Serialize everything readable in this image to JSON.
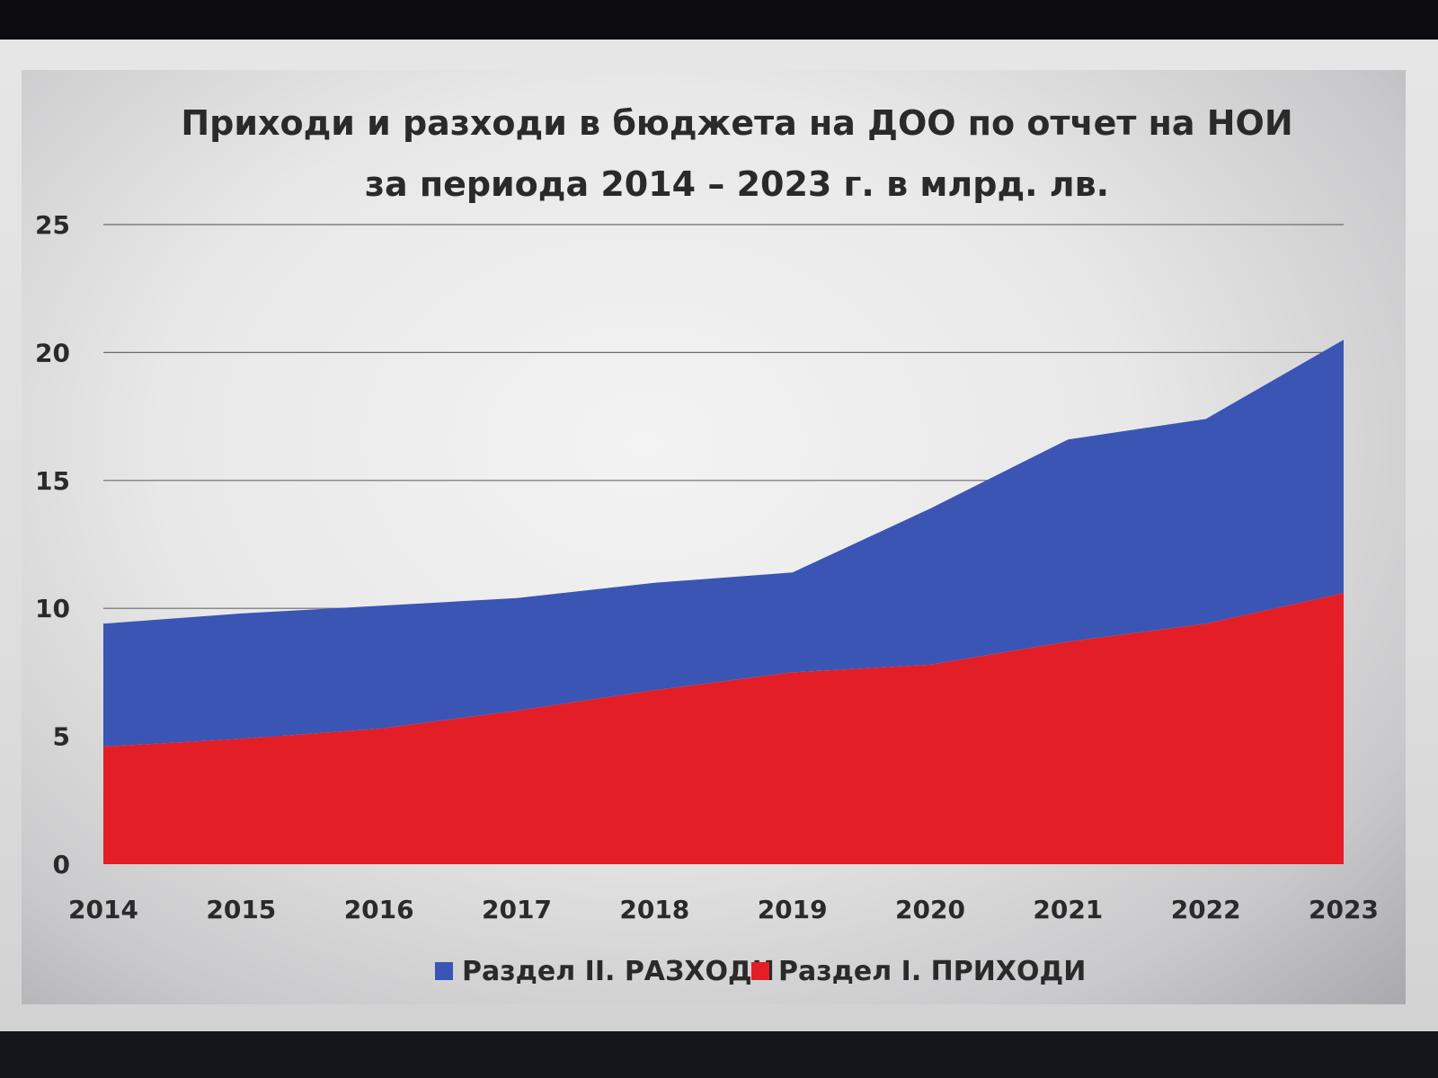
{
  "chart_data": {
    "type": "area",
    "stacked": true,
    "title": "Приходи и разходи в бюджета на ДОО по отчет на НОИ",
    "subtitle": "за периода 2014 – 2023 г. в млрд. лв.",
    "x": [
      "2014",
      "2015",
      "2016",
      "2017",
      "2018",
      "2019",
      "2020",
      "2021",
      "2022",
      "2023"
    ],
    "ylim": [
      0,
      25
    ],
    "yticks": [
      "0",
      "5",
      "10",
      "15",
      "20",
      "25"
    ],
    "grid": true,
    "legend_position": "bottom",
    "series": [
      {
        "name": "Раздел I. ПРИХОДИ",
        "color": "#e41e26",
        "values": [
          4.6,
          4.9,
          5.3,
          6.0,
          6.8,
          7.5,
          7.8,
          8.7,
          9.4,
          10.6
        ]
      },
      {
        "name": "Раздел II. РАЗХОДИ",
        "color": "#3b55b4",
        "values": [
          4.8,
          4.9,
          4.8,
          4.4,
          4.2,
          3.9,
          6.1,
          7.9,
          8.0,
          9.9
        ]
      }
    ],
    "legend_order": [
      "Раздел II. РАЗХОДИ",
      "Раздел I. ПРИХОДИ"
    ]
  }
}
